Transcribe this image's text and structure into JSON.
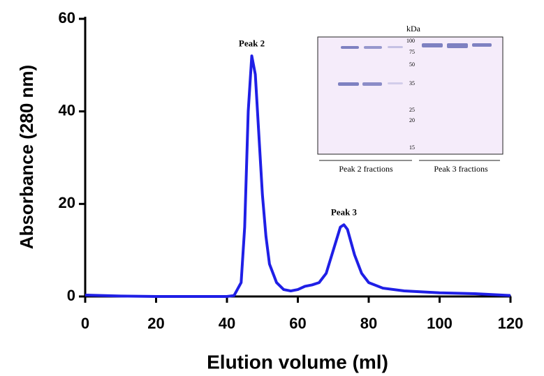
{
  "chart_data": {
    "type": "line",
    "x_label": "Elution volume  (ml)",
    "y_label": "Absorbance (280 nm)",
    "x": [
      0,
      10,
      20,
      30,
      40,
      42,
      44,
      45,
      46,
      47,
      48,
      49,
      50,
      51,
      52,
      54,
      56,
      58,
      60,
      62,
      64,
      66,
      68,
      70,
      72,
      73,
      74,
      76,
      78,
      80,
      84,
      90,
      100,
      110,
      120
    ],
    "series": [
      {
        "color": "#1f1fe6",
        "values": [
          0.3,
          0.1,
          0,
          0,
          0,
          0.2,
          3,
          15,
          40,
          52,
          48,
          35,
          22,
          13,
          7,
          3,
          1.5,
          1.2,
          1.5,
          2.2,
          2.5,
          3,
          5,
          10,
          15,
          15.5,
          14.5,
          9,
          5,
          3,
          1.8,
          1.2,
          0.8,
          0.6,
          0.2
        ]
      }
    ],
    "xlim": [
      0,
      120
    ],
    "xticks": [
      0,
      20,
      40,
      60,
      80,
      100,
      120
    ],
    "ylim": [
      0,
      60
    ],
    "yticks": [
      0,
      20,
      40,
      60
    ],
    "annotations": [
      {
        "text": "Peak 2",
        "x": 47,
        "y": 54.5
      },
      {
        "text": "Peak 3",
        "x": 73,
        "y": 18
      }
    ],
    "inset": {
      "unit_label": "kDa",
      "markers": [
        "100",
        "75",
        "50",
        "35",
        "25",
        "20",
        "15"
      ],
      "lane_groups": [
        "Peak 2 fractions",
        "Peak 3 fractions"
      ]
    }
  }
}
